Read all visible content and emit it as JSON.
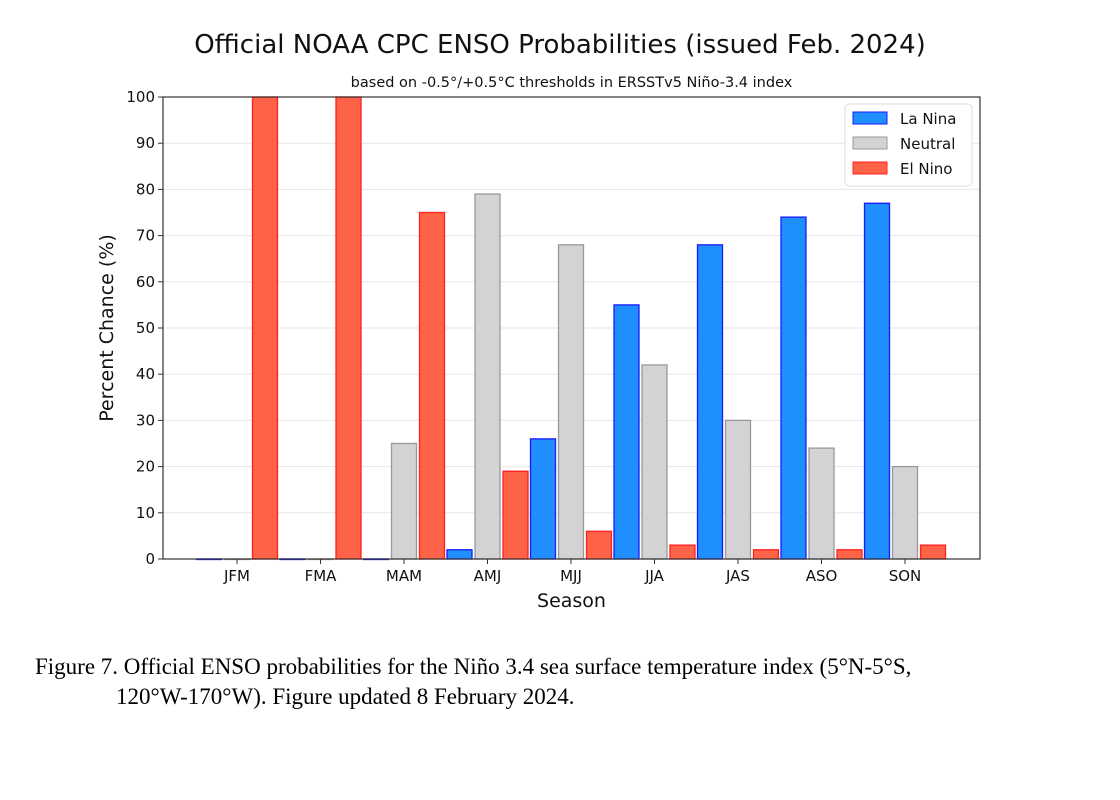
{
  "chart_data": {
    "type": "bar",
    "title": "Official NOAA CPC ENSO Probabilities (issued Feb. 2024)",
    "subtitle": "based on -0.5°/+0.5°C thresholds in ERSSTv5 Niño-3.4 index",
    "xlabel": "Season",
    "ylabel": "Percent Chance (%)",
    "ylim": [
      0,
      100
    ],
    "yticks": [
      0,
      10,
      20,
      30,
      40,
      50,
      60,
      70,
      80,
      90,
      100
    ],
    "grid": "horizontal",
    "legend_position": "top-right",
    "categories": [
      "JFM",
      "FMA",
      "MAM",
      "AMJ",
      "MJJ",
      "JJA",
      "JAS",
      "ASO",
      "SON"
    ],
    "series": [
      {
        "name": "La Nina",
        "color": "#1f8fff",
        "edge": "#1a1aff",
        "values": [
          0,
          0,
          0,
          2,
          26,
          55,
          68,
          74,
          77
        ]
      },
      {
        "name": "Neutral",
        "color": "#d3d3d6",
        "edge": "#999999",
        "values": [
          0,
          0,
          25,
          79,
          68,
          42,
          30,
          24,
          20
        ]
      },
      {
        "name": "El Nino",
        "color": "#ff6347",
        "edge": "#ff2020",
        "values": [
          100,
          100,
          75,
          19,
          6,
          3,
          2,
          2,
          3
        ]
      }
    ]
  },
  "caption": {
    "line1": "Figure 7. Official ENSO probabilities for the Niño 3.4 sea surface temperature index (5°N-5°S,",
    "line2": "120°W-170°W). Figure updated 8 February 2024."
  }
}
